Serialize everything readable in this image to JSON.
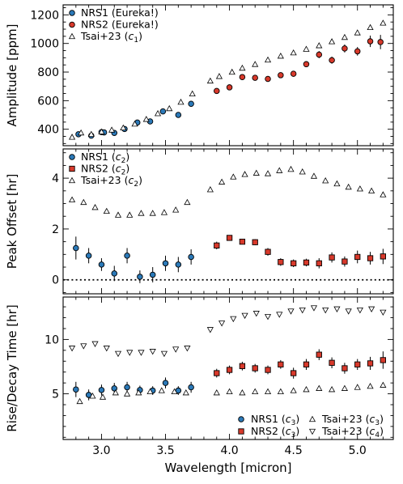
{
  "chart_data": [
    {
      "type": "scatter",
      "ylabel": "Amplitude [ppm]",
      "ylim": [
        285,
        1270
      ],
      "yticks": [
        400,
        600,
        800,
        1000,
        1200
      ],
      "yminor_step": 50,
      "legend": "top-left",
      "legend_entries": [
        {
          "label": "NRS1 (Eureka!)",
          "marker": "circle",
          "color": "#2b79b8"
        },
        {
          "label": "NRS2 (Eureka!)",
          "marker": "circle",
          "color": "#d8392b"
        },
        {
          "label": "Tsai+23 (",
          "sub": "c",
          "subidx": "1",
          "tail": ")",
          "marker": "triangle-up",
          "color": "#ffffff"
        }
      ],
      "series": [
        {
          "name": "NRS1 (Eureka!)",
          "marker": "circle",
          "color": "#2b79b8",
          "errbars": true,
          "points": [
            [
              2.82,
              365,
              18
            ],
            [
              2.92,
              355,
              18
            ],
            [
              3.0,
              380,
              15
            ],
            [
              3.02,
              378,
              15
            ],
            [
              3.1,
              374,
              15
            ],
            [
              3.18,
              402,
              15
            ],
            [
              3.28,
              447,
              15
            ],
            [
              3.38,
              455,
              15
            ],
            [
              3.48,
              525,
              15
            ],
            [
              3.6,
              500,
              15
            ],
            [
              3.7,
              578,
              20
            ]
          ]
        },
        {
          "name": "NRS2 (Eureka!)",
          "marker": "circle",
          "color": "#d8392b",
          "errbars": true,
          "points": [
            [
              3.9,
              668,
              15
            ],
            [
              4.0,
              693,
              15
            ],
            [
              4.1,
              765,
              15
            ],
            [
              4.2,
              760,
              15
            ],
            [
              4.3,
              752,
              15
            ],
            [
              4.4,
              778,
              18
            ],
            [
              4.5,
              788,
              20
            ],
            [
              4.6,
              855,
              20
            ],
            [
              4.7,
              922,
              25
            ],
            [
              4.8,
              883,
              25
            ],
            [
              4.9,
              965,
              28
            ],
            [
              5.0,
              945,
              30
            ],
            [
              5.1,
              1015,
              40
            ],
            [
              5.18,
              1010,
              50
            ]
          ]
        },
        {
          "name": "Tsai+23 (c1)",
          "marker": "triangle-up",
          "color": "#ffffff",
          "points": [
            [
              2.77,
              345
            ],
            [
              2.84,
              375
            ],
            [
              2.92,
              365
            ],
            [
              3.0,
              382
            ],
            [
              3.08,
              395
            ],
            [
              3.17,
              410
            ],
            [
              3.26,
              437
            ],
            [
              3.35,
              470
            ],
            [
              3.44,
              510
            ],
            [
              3.53,
              545
            ],
            [
              3.62,
              590
            ],
            [
              3.71,
              648
            ],
            [
              3.85,
              738
            ],
            [
              3.92,
              770
            ],
            [
              4.02,
              800
            ],
            [
              4.1,
              828
            ],
            [
              4.2,
              854
            ],
            [
              4.3,
              885
            ],
            [
              4.4,
              912
            ],
            [
              4.5,
              935
            ],
            [
              4.6,
              960
            ],
            [
              4.7,
              985
            ],
            [
              4.8,
              1013
            ],
            [
              4.9,
              1043
            ],
            [
              5.0,
              1075
            ],
            [
              5.1,
              1112
            ],
            [
              5.2,
              1143
            ]
          ]
        }
      ]
    },
    {
      "type": "scatter",
      "ylabel": "Peak Offset [hr]",
      "ylim": [
        -0.55,
        5.15
      ],
      "yticks": [
        0,
        2,
        4
      ],
      "yminor_step": 0.5,
      "hline": 0,
      "legend": "top-left",
      "legend_entries": [
        {
          "label": "NRS1 (",
          "sub": "c",
          "subidx": "2",
          "tail": ")",
          "marker": "circle",
          "color": "#2b79b8"
        },
        {
          "label": "NRS2 (",
          "sub": "c",
          "subidx": "2",
          "tail": ")",
          "marker": "square",
          "color": "#d8392b"
        },
        {
          "label": "Tsai+23 (",
          "sub": "c",
          "subidx": "2",
          "tail": ")",
          "marker": "triangle-up",
          "color": "#ffffff"
        }
      ],
      "series": [
        {
          "name": "NRS1 (c2)",
          "marker": "circle",
          "color": "#2b79b8",
          "errbars": true,
          "points": [
            [
              2.8,
              1.25,
              0.45
            ],
            [
              2.9,
              0.95,
              0.3
            ],
            [
              3.0,
              0.6,
              0.25
            ],
            [
              3.1,
              0.25,
              0.3
            ],
            [
              3.2,
              0.95,
              0.3
            ],
            [
              3.3,
              0.12,
              0.25
            ],
            [
              3.4,
              0.2,
              0.3
            ],
            [
              3.5,
              0.65,
              0.3
            ],
            [
              3.6,
              0.6,
              0.3
            ],
            [
              3.7,
              0.9,
              0.3
            ]
          ]
        },
        {
          "name": "NRS2 (c2)",
          "marker": "square",
          "color": "#d8392b",
          "errbars": true,
          "points": [
            [
              3.9,
              1.35,
              0.15
            ],
            [
              4.0,
              1.65,
              0.1
            ],
            [
              4.1,
              1.5,
              0.1
            ],
            [
              4.2,
              1.48,
              0.12
            ],
            [
              4.3,
              1.1,
              0.15
            ],
            [
              4.4,
              0.7,
              0.15
            ],
            [
              4.5,
              0.65,
              0.15
            ],
            [
              4.6,
              0.68,
              0.15
            ],
            [
              4.7,
              0.65,
              0.2
            ],
            [
              4.8,
              0.88,
              0.2
            ],
            [
              4.9,
              0.72,
              0.2
            ],
            [
              5.0,
              0.9,
              0.25
            ],
            [
              5.1,
              0.85,
              0.25
            ],
            [
              5.2,
              0.92,
              0.3
            ]
          ]
        },
        {
          "name": "Tsai+23 (c2)",
          "marker": "triangle-up",
          "color": "#ffffff",
          "points": [
            [
              2.77,
              3.15
            ],
            [
              2.86,
              3.05
            ],
            [
              2.95,
              2.85
            ],
            [
              3.04,
              2.7
            ],
            [
              3.13,
              2.55
            ],
            [
              3.22,
              2.55
            ],
            [
              3.31,
              2.62
            ],
            [
              3.4,
              2.62
            ],
            [
              3.49,
              2.65
            ],
            [
              3.58,
              2.75
            ],
            [
              3.67,
              3.05
            ],
            [
              3.85,
              3.55
            ],
            [
              3.94,
              3.85
            ],
            [
              4.03,
              4.05
            ],
            [
              4.12,
              4.15
            ],
            [
              4.21,
              4.2
            ],
            [
              4.3,
              4.18
            ],
            [
              4.39,
              4.3
            ],
            [
              4.48,
              4.35
            ],
            [
              4.57,
              4.25
            ],
            [
              4.66,
              4.08
            ],
            [
              4.75,
              3.9
            ],
            [
              4.84,
              3.78
            ],
            [
              4.93,
              3.65
            ],
            [
              5.02,
              3.58
            ],
            [
              5.11,
              3.5
            ],
            [
              5.2,
              3.35
            ]
          ]
        }
      ]
    },
    {
      "type": "scatter",
      "ylabel": "Rise/Decay Time [hr]",
      "xlabel": "Wavelength [micron]",
      "xlim": [
        2.7,
        5.28
      ],
      "xticks": [
        3.0,
        3.5,
        4.0,
        4.5,
        5.0
      ],
      "xminor_step": 0.1,
      "ylim": [
        0.8,
        13.9
      ],
      "yticks": [
        5,
        10
      ],
      "yminor_step": 1,
      "legend": "bottom-right",
      "legend_entries": [
        {
          "label": "NRS1 (",
          "sub": "c",
          "subidx": "3",
          "tail": ")",
          "marker": "circle",
          "color": "#2b79b8"
        },
        {
          "label": "Tsai+23 (",
          "sub": "c",
          "subidx": "3",
          "tail": ")",
          "marker": "triangle-up",
          "color": "#ffffff"
        },
        {
          "label": "NRS2 (",
          "sub": "c",
          "subidx": "3",
          "tail": ")",
          "marker": "square",
          "color": "#d8392b"
        },
        {
          "label": "Tsai+23 (",
          "sub": "c",
          "subidx": "4",
          "tail": ")",
          "marker": "triangle-down",
          "color": "#ffffff"
        }
      ],
      "series": [
        {
          "name": "NRS1 (c3)",
          "marker": "circle",
          "color": "#2b79b8",
          "errbars": true,
          "points": [
            [
              2.8,
              5.4,
              0.7
            ],
            [
              2.9,
              4.9,
              0.5
            ],
            [
              3.0,
              5.35,
              0.5
            ],
            [
              3.1,
              5.5,
              0.5
            ],
            [
              3.2,
              5.6,
              0.5
            ],
            [
              3.3,
              5.35,
              0.4
            ],
            [
              3.4,
              5.3,
              0.4
            ],
            [
              3.5,
              6.0,
              0.5
            ],
            [
              3.6,
              5.3,
              0.4
            ],
            [
              3.7,
              5.6,
              0.5
            ]
          ]
        },
        {
          "name": "NRS2 (c3)",
          "marker": "square",
          "color": "#d8392b",
          "errbars": true,
          "points": [
            [
              3.9,
              6.9,
              0.4
            ],
            [
              4.0,
              7.2,
              0.4
            ],
            [
              4.1,
              7.55,
              0.4
            ],
            [
              4.2,
              7.35,
              0.4
            ],
            [
              4.3,
              7.2,
              0.4
            ],
            [
              4.4,
              7.7,
              0.4
            ],
            [
              4.5,
              6.9,
              0.5
            ],
            [
              4.6,
              7.7,
              0.5
            ],
            [
              4.7,
              8.6,
              0.5
            ],
            [
              4.8,
              7.85,
              0.5
            ],
            [
              4.9,
              7.35,
              0.5
            ],
            [
              5.0,
              7.7,
              0.5
            ],
            [
              5.1,
              7.8,
              0.6
            ],
            [
              5.2,
              8.1,
              0.8
            ]
          ]
        },
        {
          "name": "Tsai+23 (c3)",
          "marker": "triangle-up",
          "color": "#ffffff",
          "points": [
            [
              2.83,
              4.3
            ],
            [
              2.93,
              4.8
            ],
            [
              3.01,
              4.7
            ],
            [
              3.11,
              5.1
            ],
            [
              3.2,
              5.0
            ],
            [
              3.29,
              5.1
            ],
            [
              3.38,
              5.2
            ],
            [
              3.47,
              5.3
            ],
            [
              3.57,
              5.2
            ],
            [
              3.66,
              5.1
            ],
            [
              3.9,
              5.1
            ],
            [
              4.0,
              5.2
            ],
            [
              4.1,
              5.1
            ],
            [
              4.2,
              5.2
            ],
            [
              4.3,
              5.2
            ],
            [
              4.4,
              5.2
            ],
            [
              4.5,
              5.3
            ],
            [
              4.6,
              5.4
            ],
            [
              4.7,
              5.5
            ],
            [
              4.8,
              5.4
            ],
            [
              4.9,
              5.5
            ],
            [
              5.0,
              5.6
            ],
            [
              5.1,
              5.7
            ],
            [
              5.2,
              5.8
            ]
          ]
        },
        {
          "name": "Tsai+23 (c4)",
          "marker": "triangle-down",
          "color": "#ffffff",
          "points": [
            [
              2.77,
              9.2
            ],
            [
              2.86,
              9.4
            ],
            [
              2.95,
              9.6
            ],
            [
              3.04,
              9.2
            ],
            [
              3.13,
              8.7
            ],
            [
              3.22,
              8.8
            ],
            [
              3.31,
              8.8
            ],
            [
              3.4,
              8.9
            ],
            [
              3.49,
              8.7
            ],
            [
              3.58,
              9.1
            ],
            [
              3.67,
              9.2
            ],
            [
              3.85,
              10.9
            ],
            [
              3.94,
              11.5
            ],
            [
              4.03,
              11.9
            ],
            [
              4.12,
              12.2
            ],
            [
              4.21,
              12.4
            ],
            [
              4.3,
              12.1
            ],
            [
              4.39,
              12.3
            ],
            [
              4.48,
              12.6
            ],
            [
              4.57,
              12.7
            ],
            [
              4.66,
              12.9
            ],
            [
              4.75,
              12.7
            ],
            [
              4.84,
              12.8
            ],
            [
              4.93,
              12.6
            ],
            [
              5.02,
              12.7
            ],
            [
              5.11,
              12.8
            ],
            [
              5.2,
              12.5
            ]
          ]
        }
      ]
    }
  ]
}
